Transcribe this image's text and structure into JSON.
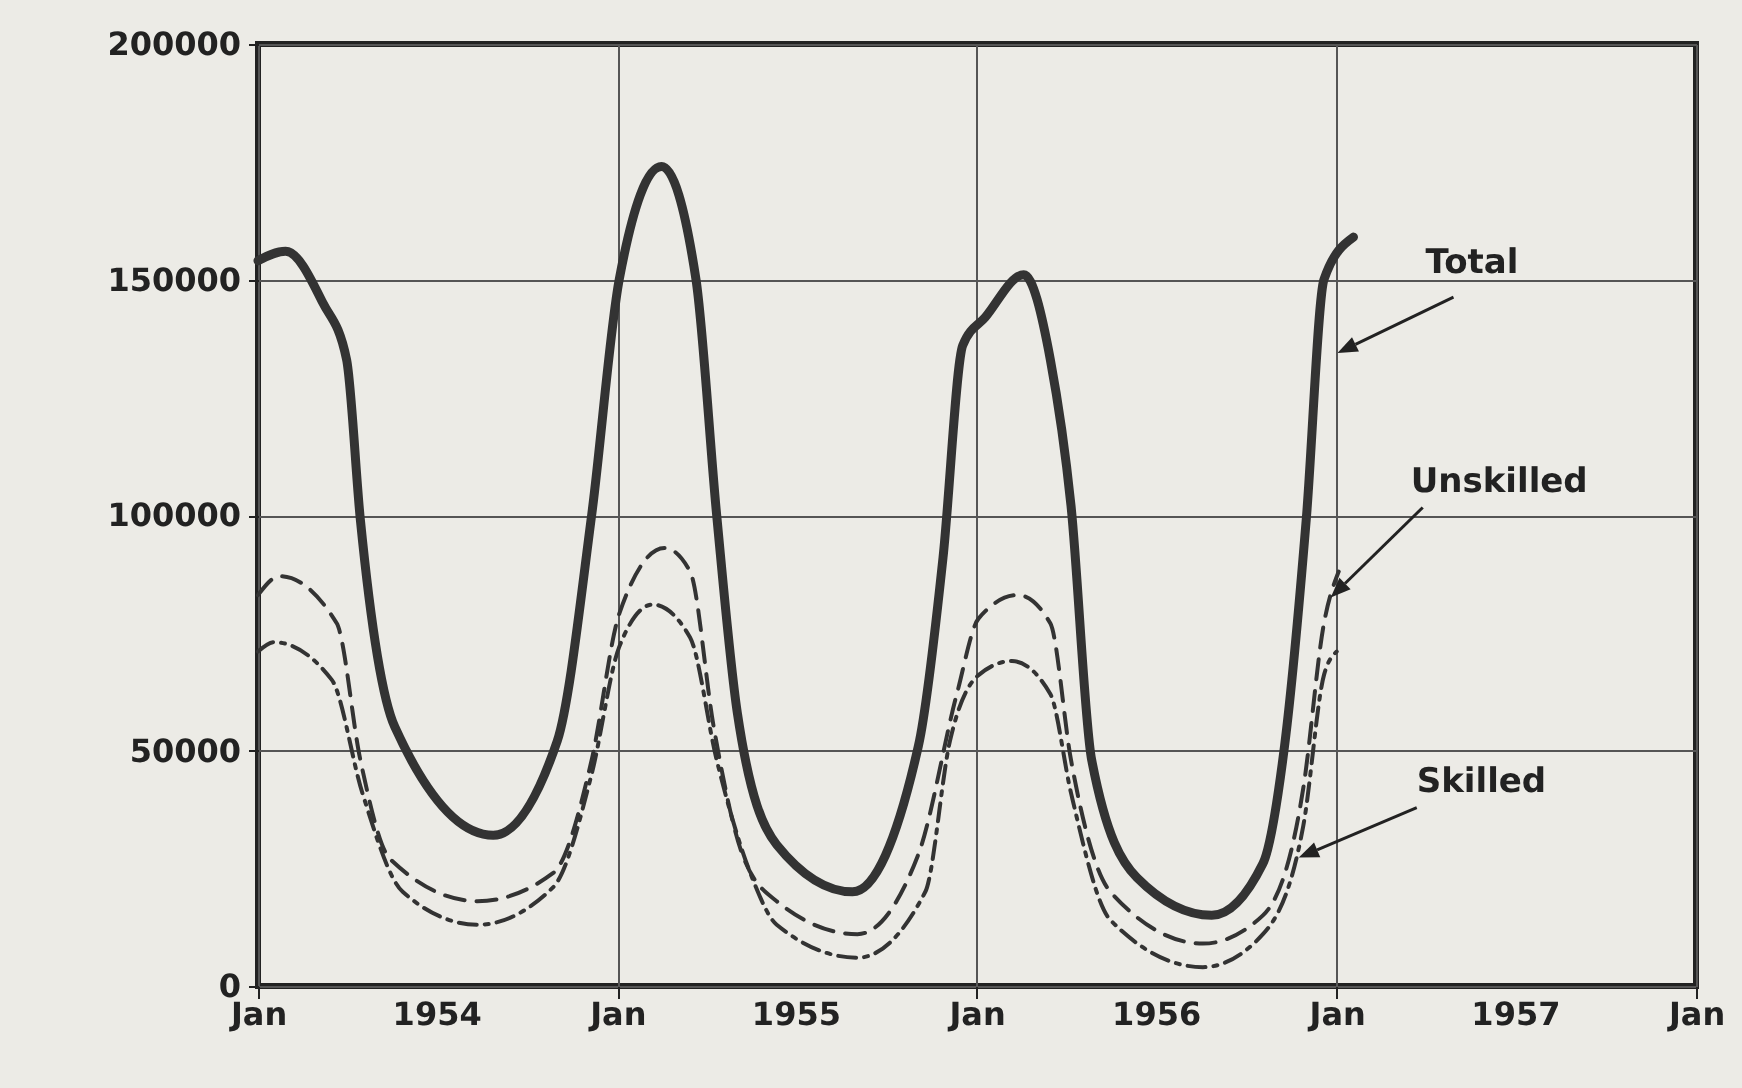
{
  "chart_data": {
    "type": "line",
    "xlim": [
      "1954-01",
      "1958-01"
    ],
    "xticks": [
      {
        "value": "1954-01",
        "label": "Jan"
      },
      {
        "value": "1954-07",
        "label": "1954"
      },
      {
        "value": "1955-01",
        "label": "Jan"
      },
      {
        "value": "1955-07",
        "label": "1955"
      },
      {
        "value": "1956-01",
        "label": "Jan"
      },
      {
        "value": "1956-07",
        "label": "1956"
      },
      {
        "value": "1957-01",
        "label": "Jan"
      },
      {
        "value": "1957-07",
        "label": "1957"
      },
      {
        "value": "1958-01",
        "label": "Jan"
      }
    ],
    "ylim": [
      0,
      200000
    ],
    "yticks": [
      0,
      50000,
      100000,
      150000,
      200000
    ],
    "grid": true,
    "legend": false,
    "marker": "none",
    "series": [
      {
        "name": "Total",
        "color": "#333333",
        "line_style": "solid",
        "x": [
          "1954-01-01",
          "1954-01-29",
          "1954-03-08",
          "1954-04-01",
          "1954-04-15",
          "1954-05-20",
          "1954-08-28",
          "1954-11-01",
          "1954-12-06",
          "1955-01-03",
          "1955-02-15",
          "1955-03-22",
          "1955-04-12",
          "1955-05-03",
          "1955-06-12",
          "1955-08-28",
          "1955-11-03",
          "1955-11-28",
          "1955-12-18",
          "1956-01-10",
          "1956-02-18",
          "1956-03-16",
          "1956-04-06",
          "1956-04-27",
          "1956-06-12",
          "1956-08-27",
          "1956-10-18",
          "1956-11-09",
          "1956-12-01",
          "1956-12-19",
          "1957-01-18"
        ],
        "values": [
          154000,
          156000,
          145000,
          133000,
          99000,
          55000,
          32000,
          52000,
          100000,
          150000,
          174000,
          150000,
          100000,
          58000,
          30000,
          20000,
          51000,
          91000,
          136000,
          142000,
          151000,
          133000,
          102000,
          48000,
          23000,
          15000,
          26000,
          51000,
          99000,
          150000,
          159000
        ]
      },
      {
        "name": "Unskilled",
        "color": "#333333",
        "line_style": "dashed",
        "x": [
          "1954-01-01",
          "1954-01-23",
          "1954-03-22",
          "1954-04-15",
          "1954-05-15",
          "1954-08-12",
          "1954-10-28",
          "1954-12-06",
          "1955-01-03",
          "1955-02-18",
          "1955-03-16",
          "1955-04-09",
          "1955-05-08",
          "1955-06-12",
          "1955-09-02",
          "1955-11-03",
          "1955-12-12",
          "1956-01-03",
          "1956-02-12",
          "1956-03-16",
          "1956-04-06",
          "1956-05-16",
          "1956-08-18",
          "1956-10-18",
          "1956-11-28",
          "1956-12-19",
          "1957-01-03"
        ],
        "values": [
          83000,
          87000,
          77000,
          48000,
          27000,
          18000,
          24000,
          48000,
          79000,
          93000,
          88000,
          55000,
          28000,
          18000,
          11000,
          28000,
          62000,
          78000,
          83000,
          77000,
          48000,
          20000,
          9000,
          15000,
          42000,
          77000,
          88000
        ]
      },
      {
        "name": "Skilled",
        "color": "#333333",
        "line_style": "dashdot",
        "x": [
          "1954-01-01",
          "1954-01-17",
          "1954-03-17",
          "1954-04-17",
          "1954-05-28",
          "1954-08-12",
          "1954-10-28",
          "1954-12-06",
          "1955-01-03",
          "1955-02-06",
          "1955-03-16",
          "1955-04-12",
          "1955-05-18",
          "1955-06-12",
          "1955-09-02",
          "1955-11-10",
          "1955-12-05",
          "1956-01-03",
          "1956-02-06",
          "1956-03-16",
          "1956-04-06",
          "1956-05-16",
          "1956-08-18",
          "1956-10-18",
          "1956-11-28",
          "1956-12-19",
          "1957-01-01"
        ],
        "values": [
          71000,
          73000,
          65000,
          41000,
          20000,
          13000,
          21000,
          45000,
          72000,
          81000,
          74000,
          48000,
          23000,
          13000,
          6000,
          20000,
          52000,
          66000,
          69000,
          62000,
          41000,
          14000,
          4000,
          11000,
          34000,
          66000,
          71000
        ]
      }
    ]
  }
}
